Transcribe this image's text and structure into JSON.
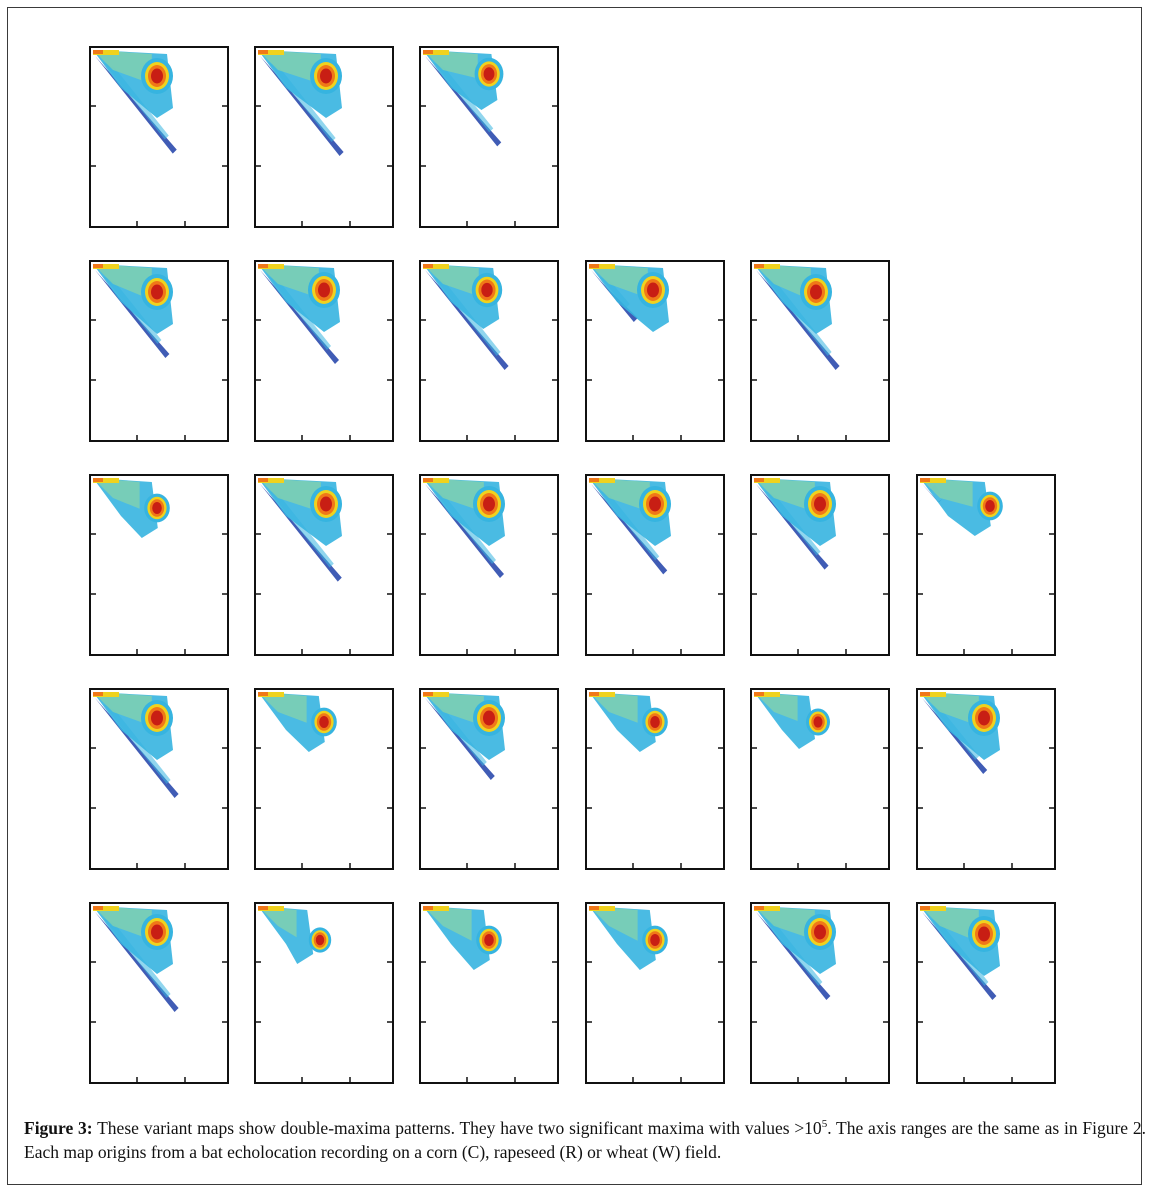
{
  "figure": {
    "caption_label": "Figure 3:",
    "caption_pre": " These variant maps show double-maxima patterns. They have two significant maxima with values >10",
    "caption_sup": "5",
    "caption_post": ". The axis ranges are the same as in Figure 2. Each map origins from a bat echolocation recording on a corn (C), rapeseed (R) or wheat (W) field.",
    "rows": [
      3,
      5,
      6,
      6,
      6
    ],
    "panel_count": 26
  },
  "colors": {
    "low": "#1f3fa8",
    "cyan": "#36b4e0",
    "mid": "#7fd0b0",
    "yellow": "#f0d21e",
    "orange": "#f07818",
    "high": "#c81e14",
    "frame": "#111111"
  }
}
